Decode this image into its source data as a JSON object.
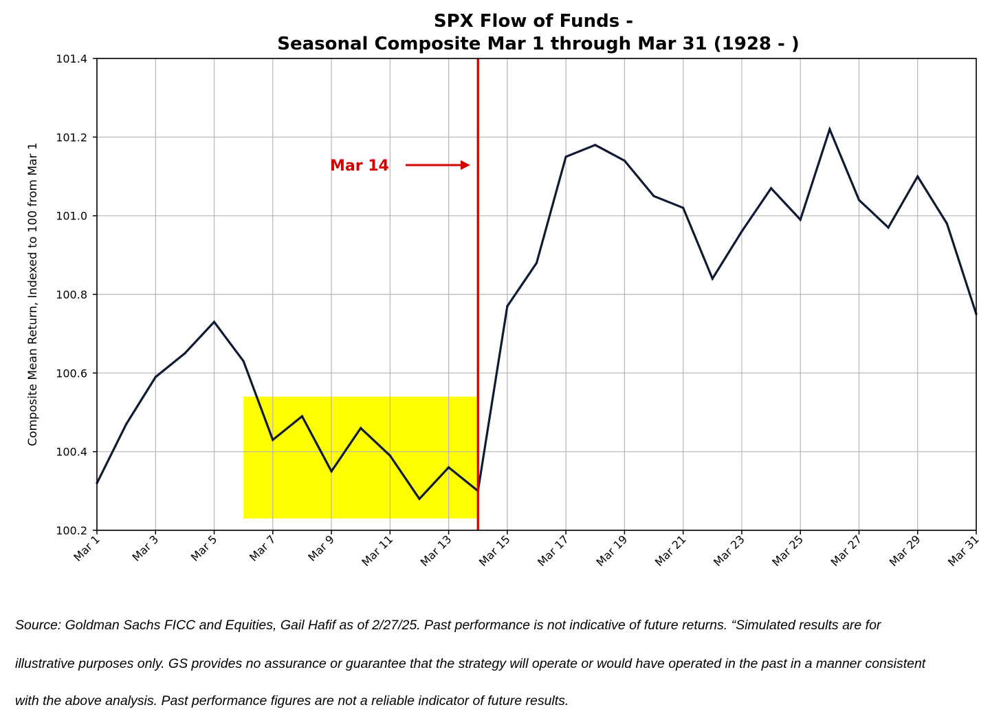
{
  "chart_data": {
    "type": "line",
    "title_line1": "SPX Flow of Funds -",
    "title_line2": "Seasonal Composite Mar 1 through Mar 31 (1928 - )",
    "xlabel": "",
    "ylabel": "Composite Mean Return, Indexed to 100 from Mar 1",
    "ylim": [
      100.2,
      101.4
    ],
    "yticks": [
      100.2,
      100.4,
      100.6,
      100.8,
      101.0,
      101.2,
      101.4
    ],
    "ytick_labels": [
      "100.2",
      "100.4",
      "100.6",
      "100.8",
      "101.0",
      "101.2",
      "101.4"
    ],
    "xticks": [
      1,
      3,
      5,
      7,
      9,
      11,
      13,
      15,
      17,
      19,
      21,
      23,
      25,
      27,
      29,
      31
    ],
    "xtick_labels": [
      "Mar 1",
      "Mar 3",
      "Mar 5",
      "Mar 7",
      "Mar 9",
      "Mar 11",
      "Mar 13",
      "Mar 15",
      "Mar 17",
      "Mar 19",
      "Mar 21",
      "Mar 23",
      "Mar 25",
      "Mar 27",
      "Mar 29",
      "Mar 31"
    ],
    "grid": true,
    "series": [
      {
        "name": "Seasonal Composite",
        "color": "#0f1a33",
        "x": [
          1,
          2,
          3,
          4,
          5,
          6,
          7,
          8,
          9,
          10,
          11,
          12,
          13,
          14,
          15,
          16,
          17,
          18,
          19,
          20,
          21,
          22,
          23,
          24,
          25,
          26,
          27,
          28,
          29,
          30,
          31
        ],
        "values": [
          100.32,
          100.47,
          100.59,
          100.65,
          100.73,
          100.63,
          100.43,
          100.49,
          100.35,
          100.46,
          100.39,
          100.28,
          100.36,
          100.3,
          100.77,
          100.88,
          101.15,
          101.18,
          101.14,
          101.05,
          101.02,
          100.84,
          100.96,
          101.07,
          100.99,
          101.22,
          101.04,
          100.97,
          101.1,
          100.98,
          100.75
        ]
      }
    ],
    "highlight_region": {
      "x_start": 6,
      "x_end": 14,
      "y_start": 100.23,
      "y_end": 100.54,
      "color": "#ffff00"
    },
    "vertical_line": {
      "x": 14,
      "color": "#cc0000"
    },
    "annotation": {
      "text": "Mar 14",
      "color": "#d40000"
    }
  },
  "footnote": {
    "line1": "Source: Goldman Sachs FICC and Equities, Gail Hafif as of 2/27/25. Past performance is not indicative of future returns. “Simulated results are for",
    "line2": "illustrative purposes only. GS provides no assurance or guarantee that the strategy will operate or would have operated in the past in a manner consistent",
    "line3": "with the above analysis. Past performance figures are not a reliable indicator of future results."
  }
}
